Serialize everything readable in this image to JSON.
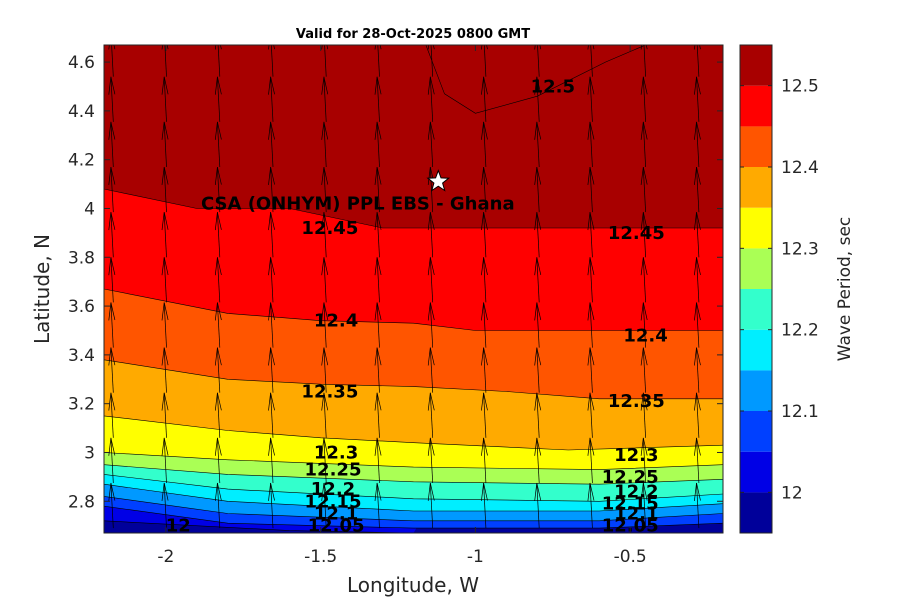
{
  "chart_data": {
    "type": "filled-contour",
    "title": "Valid for 28-Oct-2025 0800 GMT",
    "xlabel": "Longitude, W",
    "ylabel": "Latitude, N",
    "colorbar_label": "Wave Period, sec",
    "xlim": [
      -2.2,
      -0.2
    ],
    "ylim": [
      2.67,
      4.67
    ],
    "x_ticks": [
      -2,
      -1.5,
      -1,
      -0.5
    ],
    "x_tick_labels": [
      "-2",
      "-1.5",
      "-1",
      "-0.5"
    ],
    "y_ticks": [
      2.8,
      3,
      3.2,
      3.4,
      3.6,
      3.8,
      4,
      4.2,
      4.4,
      4.6
    ],
    "y_tick_labels": [
      "2.8",
      "3",
      "3.2",
      "3.4",
      "3.6",
      "3.8",
      "4",
      "4.2",
      "4.4",
      "4.6"
    ],
    "colorbar_range": [
      11.95,
      12.55
    ],
    "colorbar_ticks": [
      12,
      12.1,
      12.2,
      12.3,
      12.4,
      12.5
    ],
    "colorbar_tick_labels": [
      "12",
      "12.1",
      "12.2",
      "12.3",
      "12.4",
      "12.5"
    ],
    "contour_levels": [
      11.95,
      12,
      12.05,
      12.1,
      12.15,
      12.2,
      12.25,
      12.3,
      12.35,
      12.4,
      12.45,
      12.5,
      12.55
    ],
    "level_colors": [
      "#00009a",
      "#0000e6",
      "#0040ff",
      "#0099ff",
      "#00eeff",
      "#33ffcc",
      "#aaff55",
      "#ffff00",
      "#ffaa00",
      "#ff5500",
      "#ff0000",
      "#a80000"
    ],
    "boundaries": [
      {
        "level": 12,
        "points": [
          [
            -2.2,
            2.72
          ],
          [
            -1.6,
            2.68
          ],
          [
            -1.2,
            2.67
          ]
        ]
      },
      {
        "level": 12.05,
        "points": [
          [
            -2.2,
            2.78
          ],
          [
            -1.8,
            2.71
          ],
          [
            -1.2,
            2.69
          ],
          [
            -0.6,
            2.69
          ],
          [
            -0.2,
            2.71
          ]
        ]
      },
      {
        "level": 12.1,
        "points": [
          [
            -2.2,
            2.82
          ],
          [
            -1.8,
            2.75
          ],
          [
            -1.2,
            2.72
          ],
          [
            -0.6,
            2.72
          ],
          [
            -0.2,
            2.75
          ]
        ]
      },
      {
        "level": 12.15,
        "points": [
          [
            -2.2,
            2.87
          ],
          [
            -1.8,
            2.8
          ],
          [
            -1.2,
            2.76
          ],
          [
            -0.6,
            2.76
          ],
          [
            -0.2,
            2.79
          ]
        ]
      },
      {
        "level": 12.2,
        "points": [
          [
            -2.2,
            2.91
          ],
          [
            -1.8,
            2.85
          ],
          [
            -1.2,
            2.81
          ],
          [
            -0.6,
            2.8
          ],
          [
            -0.2,
            2.83
          ]
        ]
      },
      {
        "level": 12.25,
        "points": [
          [
            -2.2,
            2.95
          ],
          [
            -1.8,
            2.91
          ],
          [
            -1.2,
            2.88
          ],
          [
            -0.6,
            2.87
          ],
          [
            -0.2,
            2.89
          ]
        ]
      },
      {
        "level": 12.3,
        "points": [
          [
            -2.2,
            3.0
          ],
          [
            -1.8,
            2.97
          ],
          [
            -1.2,
            2.94
          ],
          [
            -0.6,
            2.93
          ],
          [
            -0.2,
            2.95
          ]
        ]
      },
      {
        "level": 12.35,
        "points": [
          [
            -2.2,
            3.15
          ],
          [
            -1.8,
            3.09
          ],
          [
            -1.5,
            3.06
          ],
          [
            -1.2,
            3.04
          ],
          [
            -0.7,
            3.01
          ],
          [
            -0.2,
            3.03
          ]
        ]
      },
      {
        "level": 12.4,
        "points": [
          [
            -2.2,
            3.38
          ],
          [
            -1.8,
            3.3
          ],
          [
            -1.5,
            3.28
          ],
          [
            -1.2,
            3.27
          ],
          [
            -0.9,
            3.25
          ],
          [
            -0.6,
            3.22
          ],
          [
            -0.2,
            3.22
          ]
        ]
      },
      {
        "level": 12.45,
        "points": [
          [
            -2.2,
            3.67
          ],
          [
            -1.8,
            3.57
          ],
          [
            -1.5,
            3.54
          ],
          [
            -1.2,
            3.53
          ],
          [
            -1.0,
            3.5
          ],
          [
            -0.6,
            3.5
          ],
          [
            -0.2,
            3.5
          ]
        ]
      },
      {
        "level": 12.5,
        "points": [
          [
            -2.2,
            4.08
          ],
          [
            -1.9,
            4.0
          ],
          [
            -1.6,
            4.0
          ],
          [
            -1.3,
            3.92
          ],
          [
            -1.0,
            3.92
          ],
          [
            -0.6,
            3.92
          ],
          [
            -0.2,
            3.92
          ]
        ]
      }
    ],
    "peak_region": {
      "level": 12.5,
      "points": [
        [
          -1.16,
          4.67
        ],
        [
          -1.1,
          4.47
        ],
        [
          -1.0,
          4.39
        ],
        [
          -0.8,
          4.46
        ],
        [
          -0.58,
          4.6
        ],
        [
          -0.45,
          4.67
        ]
      ]
    },
    "contour_labels": [
      {
        "text": "12",
        "x": -1.96,
        "y": 2.7
      },
      {
        "text": "12.05",
        "x": -1.45,
        "y": 2.7
      },
      {
        "text": "12.05",
        "x": -0.5,
        "y": 2.7
      },
      {
        "text": "12.1",
        "x": -1.45,
        "y": 2.75
      },
      {
        "text": "12.1",
        "x": -0.48,
        "y": 2.75
      },
      {
        "text": "12.15",
        "x": -1.46,
        "y": 2.8
      },
      {
        "text": "12.15",
        "x": -0.5,
        "y": 2.79
      },
      {
        "text": "12.2",
        "x": -1.46,
        "y": 2.85
      },
      {
        "text": "12.2",
        "x": -0.48,
        "y": 2.84
      },
      {
        "text": "12.25",
        "x": -1.46,
        "y": 2.93
      },
      {
        "text": "12.25",
        "x": -0.5,
        "y": 2.9
      },
      {
        "text": "12.3",
        "x": -1.45,
        "y": 3.0
      },
      {
        "text": "12.3",
        "x": -0.48,
        "y": 2.99
      },
      {
        "text": "12.35",
        "x": -1.47,
        "y": 3.25
      },
      {
        "text": "12.35",
        "x": -0.48,
        "y": 3.21
      },
      {
        "text": "12.4",
        "x": -1.45,
        "y": 3.54
      },
      {
        "text": "12.4",
        "x": -0.45,
        "y": 3.48
      },
      {
        "text": "12.45",
        "x": -1.47,
        "y": 3.92
      },
      {
        "text": "12.45",
        "x": -0.48,
        "y": 3.9
      },
      {
        "text": "12.5",
        "x": -0.75,
        "y": 4.5
      }
    ],
    "site": {
      "name": "CSA (ONHYM) PPL EBS  - Ghana",
      "x": -1.12,
      "y": 4.11,
      "label_x": -1.38,
      "label_y": 4.02
    },
    "vector_field": {
      "x_start": -2.17,
      "x_step": 0.172,
      "x_count": 12,
      "y_start": 2.69,
      "y_step": 0.185,
      "y_count": 11,
      "direction_deg_from_north": -3,
      "length_lat_units": 0.185
    }
  }
}
